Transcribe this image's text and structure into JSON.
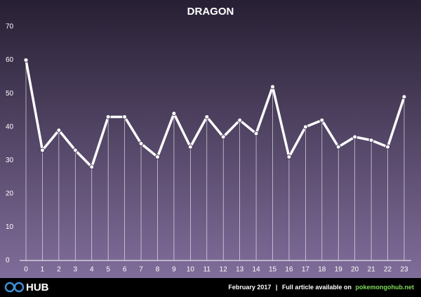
{
  "chart_data": {
    "type": "line",
    "title": "DRAGON",
    "x": [
      0,
      1,
      2,
      3,
      4,
      5,
      6,
      7,
      8,
      9,
      10,
      11,
      12,
      13,
      14,
      15,
      16,
      17,
      18,
      19,
      20,
      21,
      22,
      23
    ],
    "values": [
      60,
      33,
      39,
      33,
      28,
      43,
      43,
      35,
      31,
      44,
      34,
      43,
      37,
      42,
      38,
      52,
      31,
      40,
      42,
      34,
      37,
      36,
      34,
      49
    ],
    "color": "#ffffff",
    "xlim": [
      0,
      23
    ],
    "xticks": [
      0,
      1,
      2,
      3,
      4,
      5,
      6,
      7,
      8,
      9,
      10,
      11,
      12,
      13,
      14,
      15,
      16,
      17,
      18,
      19,
      20,
      21,
      22,
      23
    ],
    "ylim": [
      0,
      70
    ],
    "yticks": [
      0,
      10,
      20,
      30,
      40,
      50,
      60,
      70
    ],
    "grid": false,
    "drop_lines": true
  },
  "footer": {
    "logo": "HUB",
    "date": "February 2017",
    "separator": "|",
    "text": "Full article available on",
    "link": "pokemongohub.net"
  }
}
